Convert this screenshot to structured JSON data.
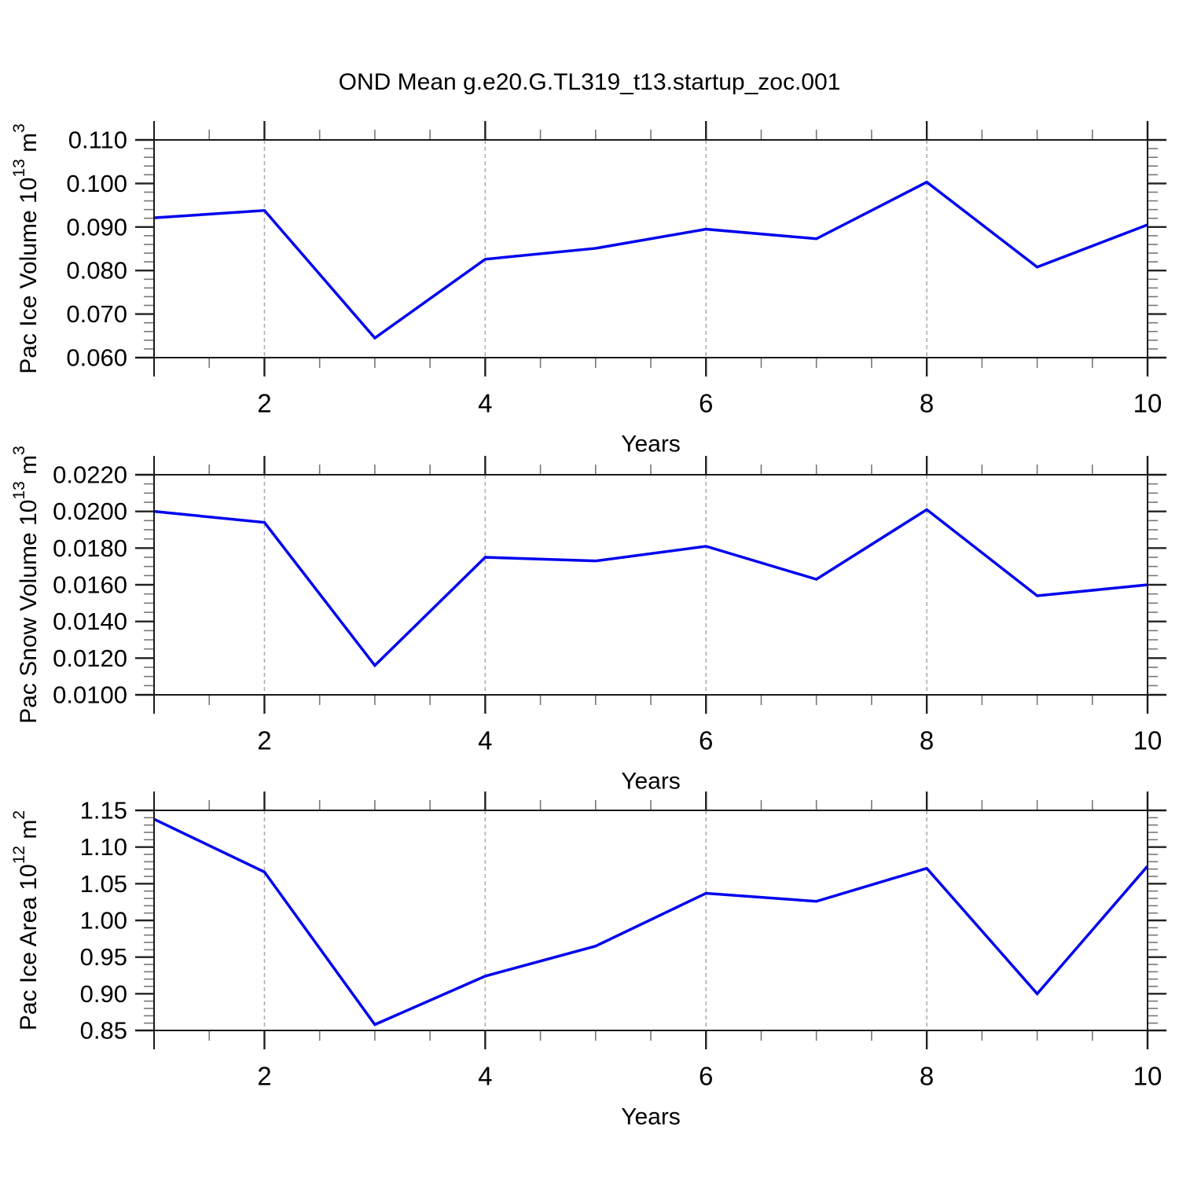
{
  "title": "OND Mean g.e20.G.TL319_t13.startup_zoc.001",
  "colors": {
    "line": "#0000f0",
    "grid": "#aaaaaa",
    "axis": "#1a1a1a",
    "tick_major": "#222222",
    "tick_minor": "#777777",
    "text": "#000000"
  },
  "chart_data": [
    {
      "type": "line",
      "name": "pac-ice-volume",
      "ylabel_parts": [
        {
          "t": "Pac Ice Volume 10"
        },
        {
          "sup": "13"
        },
        {
          "t": " m"
        },
        {
          "sup": "3"
        }
      ],
      "xlabel": "Years",
      "x": [
        1,
        2,
        3,
        4,
        5,
        6,
        7,
        8,
        9,
        10
      ],
      "values": [
        0.0921,
        0.0938,
        0.0645,
        0.0826,
        0.0851,
        0.0895,
        0.0873,
        0.1003,
        0.0808,
        0.0905
      ],
      "ylim": [
        0.06,
        0.11
      ],
      "ytick_values": [
        0.06,
        0.07,
        0.08,
        0.09,
        0.1,
        0.11
      ],
      "ytick_labels": [
        "0.060",
        "0.070",
        "0.080",
        "0.090",
        "0.100",
        "0.110"
      ],
      "yminor_step": 0.002,
      "xlim": [
        1,
        10
      ],
      "xtick_values": [
        2,
        4,
        6,
        8,
        10
      ],
      "xtick_labels": [
        "2",
        "4",
        "6",
        "8",
        "10"
      ],
      "xminor_step": 0.5,
      "grid_x": [
        2,
        4,
        6,
        8
      ],
      "grid_on": true,
      "legend": "none"
    },
    {
      "type": "line",
      "name": "pac-snow-volume",
      "ylabel_parts": [
        {
          "t": "Pac Snow Volume 10"
        },
        {
          "sup": "13"
        },
        {
          "t": " m"
        },
        {
          "sup": "3"
        }
      ],
      "xlabel": "Years",
      "x": [
        1,
        2,
        3,
        4,
        5,
        6,
        7,
        8,
        9,
        10
      ],
      "values": [
        0.02,
        0.0194,
        0.0116,
        0.0175,
        0.0173,
        0.0181,
        0.0163,
        0.0201,
        0.0154,
        0.016
      ],
      "ylim": [
        0.01,
        0.022
      ],
      "ytick_values": [
        0.01,
        0.012,
        0.014,
        0.016,
        0.018,
        0.02,
        0.022
      ],
      "ytick_labels": [
        "0.0100",
        "0.0120",
        "0.0140",
        "0.0160",
        "0.0180",
        "0.0200",
        "0.0220"
      ],
      "yminor_step": 0.0005,
      "xlim": [
        1,
        10
      ],
      "xtick_values": [
        2,
        4,
        6,
        8,
        10
      ],
      "xtick_labels": [
        "2",
        "4",
        "6",
        "8",
        "10"
      ],
      "xminor_step": 0.5,
      "grid_x": [
        2,
        4,
        6,
        8
      ],
      "grid_on": true,
      "legend": "none"
    },
    {
      "type": "line",
      "name": "pac-ice-area",
      "ylabel_parts": [
        {
          "t": "Pac Ice Area 10"
        },
        {
          "sup": "12"
        },
        {
          "t": " m"
        },
        {
          "sup": "2"
        }
      ],
      "xlabel": "Years",
      "x": [
        1,
        2,
        3,
        4,
        5,
        6,
        7,
        8,
        9,
        10
      ],
      "values": [
        1.138,
        1.066,
        0.858,
        0.924,
        0.965,
        1.037,
        1.026,
        1.071,
        0.9,
        1.074
      ],
      "ylim": [
        0.85,
        1.15
      ],
      "ytick_values": [
        0.85,
        0.9,
        0.95,
        1.0,
        1.05,
        1.1,
        1.15
      ],
      "ytick_labels": [
        "0.85",
        "0.90",
        "0.95",
        "1.00",
        "1.05",
        "1.10",
        "1.15"
      ],
      "yminor_step": 0.01,
      "xlim": [
        1,
        10
      ],
      "xtick_values": [
        2,
        4,
        6,
        8,
        10
      ],
      "xtick_labels": [
        "2",
        "4",
        "6",
        "8",
        "10"
      ],
      "xminor_step": 0.5,
      "grid_x": [
        2,
        4,
        6,
        8
      ],
      "grid_on": true,
      "legend": "none"
    }
  ]
}
